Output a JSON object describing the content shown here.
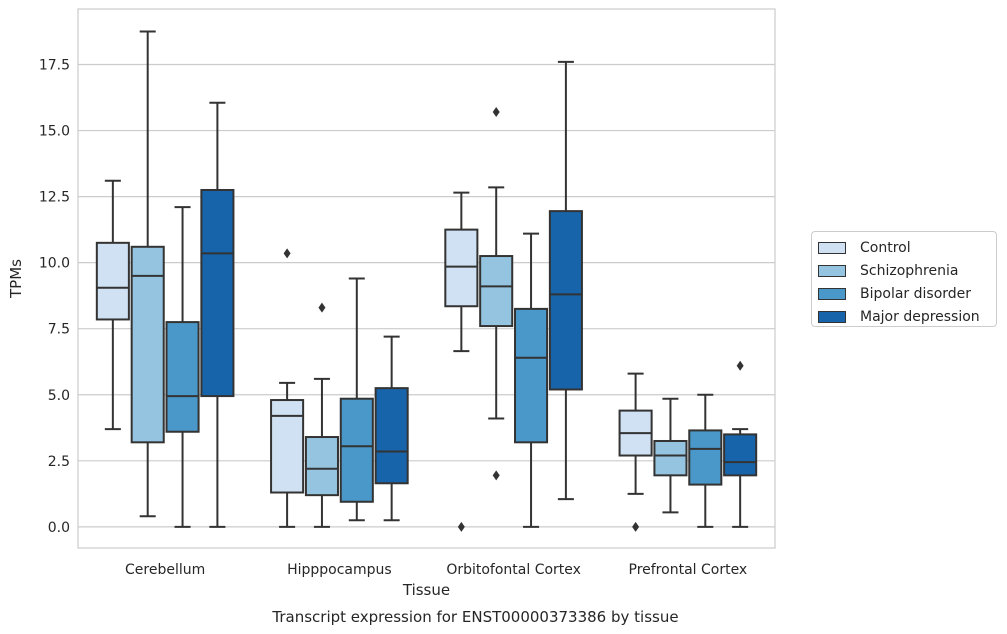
{
  "chart_data": {
    "type": "box",
    "title": "Transcript expression for ENST00000373386 by tissue",
    "xlabel": "Tissue",
    "ylabel": "TPMs",
    "ylim": [
      -0.8,
      19.6
    ],
    "yticks": [
      "0.0",
      "2.5",
      "5.0",
      "7.5",
      "10.0",
      "12.5",
      "15.0",
      "17.5"
    ],
    "categories": [
      "Cerebellum",
      "Hipppocampus",
      "Orbitofontal Cortex",
      "Prefrontal Cortex"
    ],
    "grid": "horizontal",
    "legend_position": "right",
    "series": [
      {
        "name": "Control",
        "color": "#cfe1f2",
        "boxes": [
          {
            "whislo": 3.7,
            "q1": 7.85,
            "med": 9.05,
            "q3": 10.75,
            "whishi": 13.1,
            "fliers": []
          },
          {
            "whislo": 0.0,
            "q1": 1.3,
            "med": 4.2,
            "q3": 4.8,
            "whishi": 5.45,
            "fliers": [
              10.35
            ]
          },
          {
            "whislo": 6.65,
            "q1": 8.35,
            "med": 9.85,
            "q3": 11.25,
            "whishi": 12.65,
            "fliers": [
              0.0
            ]
          },
          {
            "whislo": 1.25,
            "q1": 2.7,
            "med": 3.55,
            "q3": 4.4,
            "whishi": 5.8,
            "fliers": [
              0.0
            ]
          }
        ]
      },
      {
        "name": "Schizophrenia",
        "color": "#94c4df",
        "boxes": [
          {
            "whislo": 0.4,
            "q1": 3.2,
            "med": 9.5,
            "q3": 10.6,
            "whishi": 18.75,
            "fliers": []
          },
          {
            "whislo": 0.0,
            "q1": 1.2,
            "med": 2.2,
            "q3": 3.4,
            "whishi": 5.6,
            "fliers": [
              8.3
            ]
          },
          {
            "whislo": 4.1,
            "q1": 7.6,
            "med": 9.1,
            "q3": 10.25,
            "whishi": 12.85,
            "fliers": [
              15.7,
              1.95
            ]
          },
          {
            "whislo": 0.55,
            "q1": 1.95,
            "med": 2.7,
            "q3": 3.25,
            "whishi": 4.85,
            "fliers": []
          }
        ]
      },
      {
        "name": "Bipolar disorder",
        "color": "#4a98c9",
        "boxes": [
          {
            "whislo": 0.0,
            "q1": 3.6,
            "med": 4.95,
            "q3": 7.75,
            "whishi": 12.1,
            "fliers": []
          },
          {
            "whislo": 0.25,
            "q1": 0.95,
            "med": 3.05,
            "q3": 4.85,
            "whishi": 9.4,
            "fliers": []
          },
          {
            "whislo": 0.0,
            "q1": 3.2,
            "med": 6.4,
            "q3": 8.25,
            "whishi": 11.1,
            "fliers": []
          },
          {
            "whislo": 0.0,
            "q1": 1.6,
            "med": 2.95,
            "q3": 3.65,
            "whishi": 5.0,
            "fliers": []
          }
        ]
      },
      {
        "name": "Major depression",
        "color": "#1764ab",
        "boxes": [
          {
            "whislo": 0.0,
            "q1": 4.95,
            "med": 10.35,
            "q3": 12.75,
            "whishi": 16.05,
            "fliers": []
          },
          {
            "whislo": 0.25,
            "q1": 1.65,
            "med": 2.85,
            "q3": 5.25,
            "whishi": 7.2,
            "fliers": []
          },
          {
            "whislo": 1.05,
            "q1": 5.2,
            "med": 8.8,
            "q3": 11.95,
            "whishi": 17.6,
            "fliers": []
          },
          {
            "whislo": 0.0,
            "q1": 1.95,
            "med": 2.45,
            "q3": 3.5,
            "whishi": 3.7,
            "fliers": [
              6.1
            ]
          }
        ]
      }
    ]
  }
}
